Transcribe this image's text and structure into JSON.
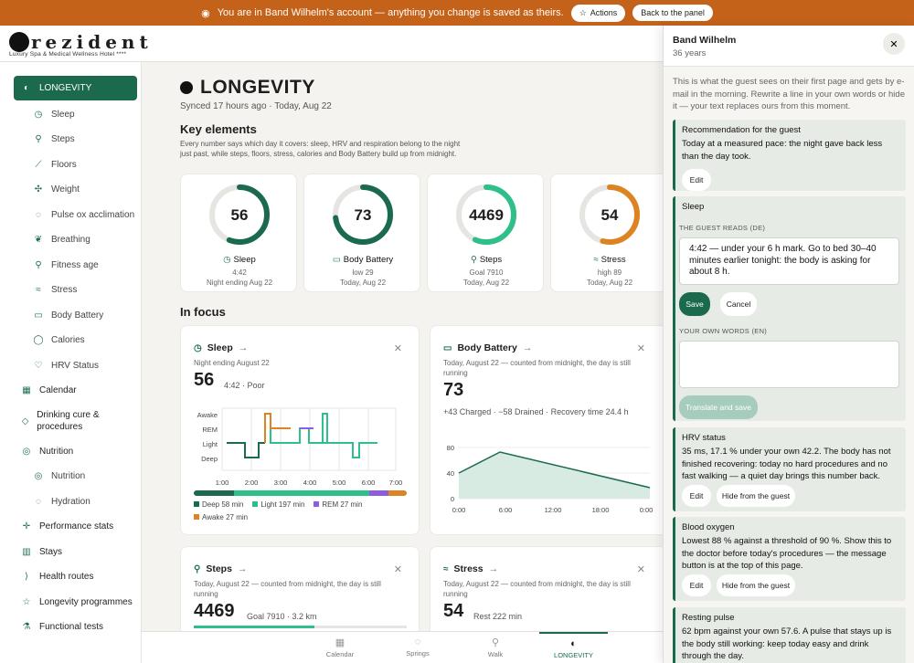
{
  "banner": {
    "message": "You are in Band Wilhelm's account — anything you change is saved as theirs.",
    "actions_label": "Actions",
    "back_label": "Back to the panel"
  },
  "brand": {
    "name": "rezident",
    "subtitle": "Luxury Spa & Medical Wellness Hotel",
    "stars": "****"
  },
  "sidebar": {
    "active": "LONGEVITY",
    "sub_items": [
      "Sleep",
      "Steps",
      "Floors",
      "Weight",
      "Pulse ox acclimation",
      "Breathing",
      "Fitness age",
      "Stress",
      "Body Battery",
      "Calories",
      "HRV Status"
    ],
    "calendar": "Calendar",
    "drinking": "Drinking cure & procedures",
    "nutrition": "Nutrition",
    "nutrition_sub": [
      "Nutrition",
      "Hydration"
    ],
    "performance": "Performance stats",
    "stays": "Stays",
    "health_routes": "Health routes",
    "longevity_programmes": "Longevity programmes",
    "functional_tests": "Functional tests"
  },
  "main": {
    "title": "LONGEVITY",
    "synced": "Synced 17 hours ago · Today, Aug 22",
    "key_heading": "Key elements",
    "key_note": "Every number says which day it covers: sleep, HRV and respiration belong to the night just past, while steps, floors, stress, calories and Body Battery build up from midnight.",
    "key_cards": [
      {
        "value": "56",
        "label": "Sleep",
        "sub": "4:42",
        "date": "Night ending Aug 22",
        "fraction": 0.56,
        "color": "#1b6a4d"
      },
      {
        "value": "73",
        "label": "Body Battery",
        "sub": "low 29",
        "date": "Today, Aug 22",
        "fraction": 0.73,
        "color": "#1b6a4d"
      },
      {
        "value": "4469",
        "label": "Steps",
        "sub": "Goal 7910",
        "date": "Today, Aug 22",
        "fraction": 0.565,
        "color": "#2fbf8a"
      },
      {
        "value": "54",
        "label": "Stress",
        "sub": "high 89",
        "date": "Today, Aug 22",
        "fraction": 0.54,
        "color": "#dd8422"
      }
    ],
    "focus_heading": "In focus",
    "sleep": {
      "title": "Sleep",
      "sub": "Night ending August 22",
      "value": "56",
      "meta": "4:42 · Poor",
      "stages": [
        "Awake",
        "REM",
        "Light",
        "Deep"
      ],
      "times": [
        "1:00",
        "2:00",
        "3:00",
        "4:00",
        "5:00",
        "6:00",
        "7:00"
      ],
      "legend": [
        "Deep 58 min",
        "Light 197 min",
        "REM 27 min",
        "Awake 27 min"
      ],
      "minutes": [
        58,
        197,
        27,
        27
      ]
    },
    "battery": {
      "title": "Body Battery",
      "sub": "Today, August 22 — counted from midnight, the day is still running",
      "value": "73",
      "meta": "+43 Charged · −58 Drained · Recovery time 24.4 h",
      "y_ticks": [
        "80",
        "40",
        "0"
      ],
      "x_ticks": [
        "0:00",
        "6:00",
        "12:00",
        "18:00",
        "0:00"
      ]
    },
    "steps": {
      "title": "Steps",
      "sub": "Today, August 22 — counted from midnight, the day is still running",
      "value": "4469",
      "meta": "Goal 7910 · 3.2 km",
      "progress": 0.565
    },
    "stress": {
      "title": "Stress",
      "sub": "Today, August 22 — counted from midnight, the day is still running",
      "value": "54",
      "meta": "Rest 222 min"
    }
  },
  "bottom_nav": [
    "Calendar",
    "Springs",
    "Walk",
    "LONGEVITY"
  ],
  "panel": {
    "name": "Band Wilhelm",
    "age": "36 years",
    "intro": "This is what the guest sees on their first page and gets by e-mail in the morning. Rewrite a line in your own words or hide it — your text replaces ours from this moment.",
    "recommendation": {
      "title": "Recommendation for the guest",
      "text": "Today at a measured pace: the night gave back less than the day took.",
      "edit": "Edit"
    },
    "sleep": {
      "title": "Sleep",
      "guest_reads": "THE GUEST READS (DE)",
      "guest_text": "4:42 — under your 6 h mark. Go to bed 30–40 minutes earlier tonight: the body is asking for about 8 h.",
      "save": "Save",
      "cancel": "Cancel",
      "own_words": "YOUR OWN WORDS (EN)",
      "translate": "Translate and save"
    },
    "hrv": {
      "title": "HRV status",
      "text": "35 ms, 17.1 % under your own 42.2. The body has not finished recovering: today no hard procedures and no fast walking — a quiet day brings this number back.",
      "edit": "Edit",
      "hide": "Hide from the guest"
    },
    "oxygen": {
      "title": "Blood oxygen",
      "text": "Lowest 88 % against a threshold of 90 %. Show this to the doctor before today's procedures — the message button is at the top of this page.",
      "edit": "Edit",
      "hide": "Hide from the guest"
    },
    "pulse": {
      "title": "Resting pulse",
      "text": "62 bpm against your own 57.6. A pulse that stays up is the body still working: keep today easy and drink through the day."
    }
  }
}
